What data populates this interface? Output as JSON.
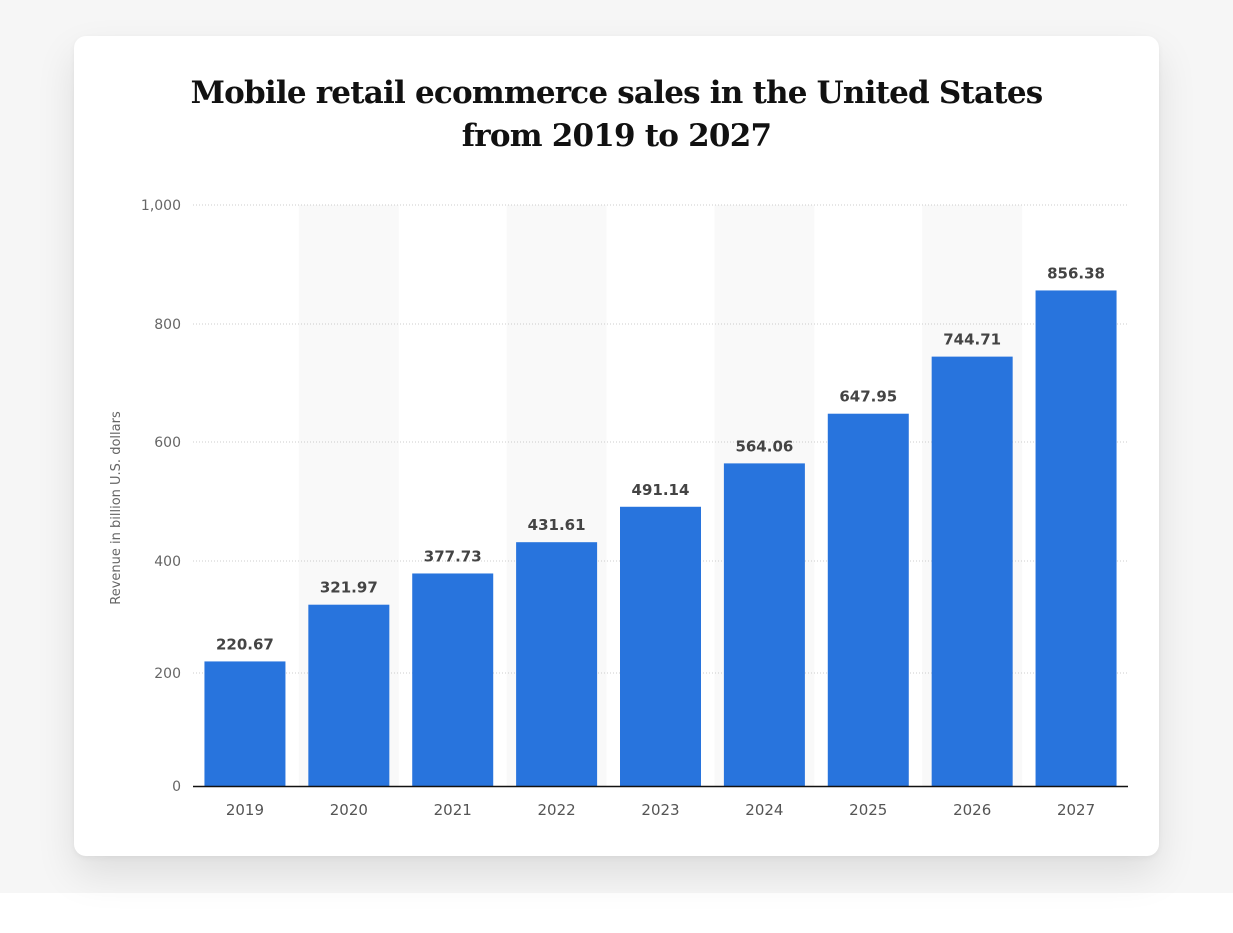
{
  "chart_data": {
    "type": "bar",
    "title": "Mobile retail ecommerce sales in the United States from 2019 to 2027",
    "title_lines": [
      "Mobile retail ecommerce sales in the United States",
      "from 2019 to 2027"
    ],
    "xlabel": "",
    "ylabel": "Revenue in billion U.S. dollars",
    "categories": [
      "2019",
      "2020",
      "2021",
      "2022",
      "2023",
      "2024",
      "2025",
      "2026",
      "2027"
    ],
    "values": [
      220.67,
      321.97,
      377.73,
      431.61,
      491.14,
      564.06,
      647.95,
      744.71,
      856.38
    ],
    "value_labels": [
      "220.67",
      "321.97",
      "377.73",
      "431.61",
      "491.14",
      "564.06",
      "647.95",
      "744.71",
      "856.38"
    ],
    "ylim": [
      0,
      1000
    ],
    "yticks": [
      0,
      200,
      400,
      600,
      800,
      1000
    ],
    "ytick_labels": [
      "0",
      "200",
      "400",
      "600",
      "800",
      "1,000"
    ],
    "grid": true,
    "legend": "none",
    "colors": {
      "bar": "#2874dd",
      "alt_band": "#f9f9f9",
      "grid": "#cccccc",
      "axis": "#111111"
    }
  }
}
